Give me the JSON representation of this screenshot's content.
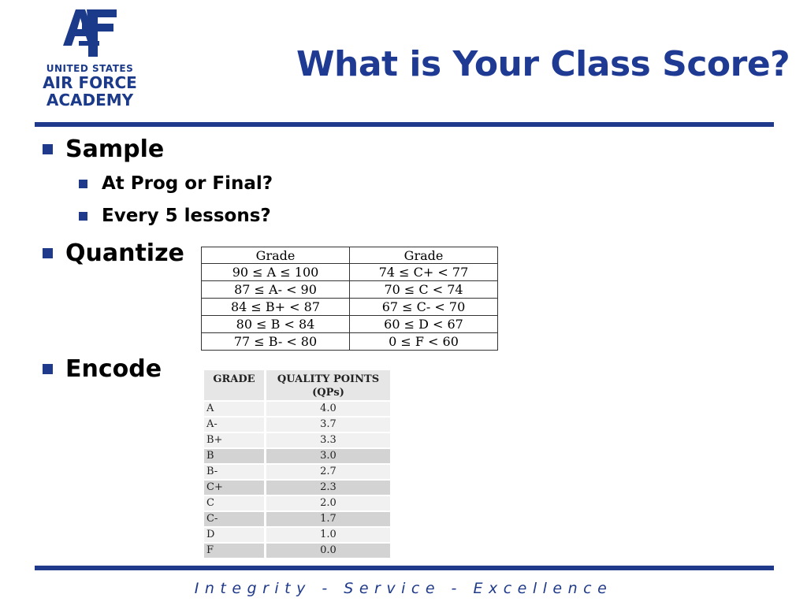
{
  "logo": {
    "line1": "UNITED STATES",
    "line2": "AIR FORCE",
    "line3": "ACADEMY",
    "emblem_icon": "af-emblem-icon"
  },
  "title": "What is Your Class Score?",
  "bullets": {
    "sample": "Sample",
    "sample_sub1": "At Prog or Final?",
    "sample_sub2": "Every 5 lessons?",
    "quantize": "Quantize",
    "encode": "Encode"
  },
  "grade_ranges": {
    "headers": [
      "Grade",
      "Grade"
    ],
    "rows": [
      [
        "90 ≤ A ≤ 100",
        "74 ≤ C+ < 77"
      ],
      [
        "87 ≤ A- < 90",
        "70 ≤ C < 74"
      ],
      [
        "84 ≤ B+ < 87",
        "67 ≤ C- < 70"
      ],
      [
        "80 ≤ B < 84",
        "60 ≤ D < 67"
      ],
      [
        "77 ≤ B- < 80",
        "0 ≤ F < 60"
      ]
    ]
  },
  "quality_points": {
    "header_grade": "GRADE",
    "header_points_line1": "QUALITY POINTS",
    "header_points_line2": "(QPs)",
    "rows": [
      [
        "A",
        "4.0"
      ],
      [
        "A-",
        "3.7"
      ],
      [
        "B+",
        "3.3"
      ],
      [
        "B",
        "3.0"
      ],
      [
        "B-",
        "2.7"
      ],
      [
        "C+",
        "2.3"
      ],
      [
        "C",
        "2.0"
      ],
      [
        "C-",
        "1.7"
      ],
      [
        "D",
        "1.0"
      ],
      [
        "F",
        "0.0"
      ]
    ]
  },
  "footer": "Integrity - Service - Excellence",
  "colors": {
    "brand_blue": "#1f3a8a"
  }
}
